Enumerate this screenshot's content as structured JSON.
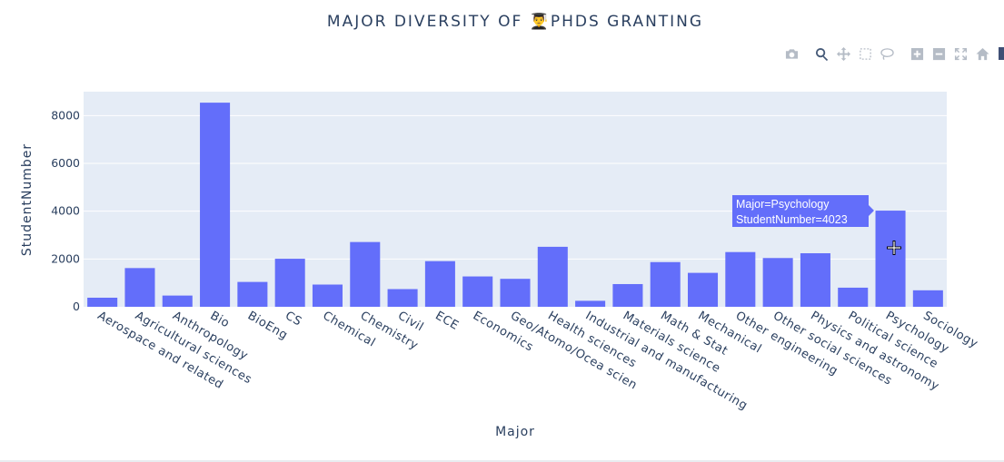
{
  "chart_data": {
    "type": "bar",
    "title": "MAJOR DIVERSITY OF 👨‍🎓PHDS GRANTING",
    "xlabel": "Major",
    "ylabel": "StudentNumber",
    "ylim": [
      0,
      9000
    ],
    "yticks": [
      0,
      2000,
      4000,
      6000,
      8000
    ],
    "ytick_labels": [
      "0",
      "2000",
      "4000",
      "6000",
      "8000"
    ],
    "bar_color": "#636efa",
    "plot_bg": "#e5ecf6",
    "categories": [
      "Aerospace and related",
      "Agricultural sciences",
      "Anthropology",
      "Bio",
      "BioEng",
      "CS",
      "Chemical",
      "Chemistry",
      "Civil",
      "ECE",
      "Economics",
      "Geo/Atomo/Ocea scien",
      "Health sciences",
      "Industrial and manufacturing",
      "Materials science",
      "Math & Stat",
      "Mechanical",
      "Other engineering",
      "Other social sciences",
      "Physics and astronomy",
      "Political science",
      "Psychology",
      "Sociology"
    ],
    "values": [
      380,
      1620,
      470,
      8540,
      1040,
      2010,
      930,
      2710,
      740,
      1910,
      1270,
      1170,
      2510,
      250,
      950,
      1870,
      1420,
      2290,
      2040,
      2240,
      800,
      4023,
      690
    ]
  },
  "tooltip": {
    "line1": "Major=Psychology",
    "line2": "StudentNumber=4023"
  },
  "modebar": {
    "buttons": [
      "camera-icon",
      "zoom-icon",
      "pan-icon",
      "box-select-icon",
      "lasso-select-icon",
      "zoom-in-icon",
      "zoom-out-icon",
      "autoscale-icon",
      "reset-axes-icon"
    ]
  }
}
